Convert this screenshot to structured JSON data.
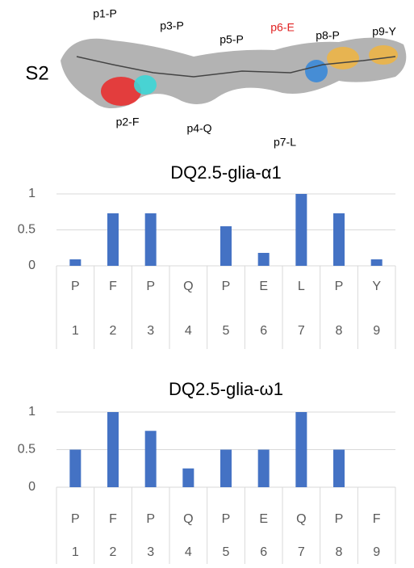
{
  "image": {
    "panel_label": "S2",
    "residue_labels": [
      "p1-P",
      "p2-F",
      "p3-P",
      "p4-Q",
      "p5-P",
      "p6-E",
      "p7-L",
      "p8-P",
      "p9-Y"
    ]
  },
  "chart_data": [
    {
      "type": "bar",
      "title": "DQ2.5-glia-α1",
      "categories": [
        "P",
        "F",
        "P",
        "Q",
        "P",
        "E",
        "L",
        "P",
        "Y"
      ],
      "category_numbers": [
        1,
        2,
        3,
        4,
        5,
        6,
        7,
        8,
        9
      ],
      "values": [
        0.09,
        0.73,
        0.73,
        0,
        0.55,
        0.18,
        1,
        0.73,
        0.09
      ],
      "color": "#4472c4",
      "ylim": [
        0,
        1
      ],
      "yticks": [
        0,
        0.5,
        1
      ],
      "grid": true
    },
    {
      "type": "bar",
      "title": "DQ2.5-glia-ω1",
      "categories": [
        "P",
        "F",
        "P",
        "Q",
        "P",
        "E",
        "Q",
        "P",
        "F"
      ],
      "category_numbers": [
        1,
        2,
        3,
        4,
        5,
        6,
        7,
        8,
        9
      ],
      "values": [
        0.5,
        1,
        0.75,
        0.25,
        0.5,
        0.5,
        1,
        0.5,
        0
      ],
      "color": "#4472c4",
      "ylim": [
        0,
        1
      ],
      "yticks": [
        0,
        0.5,
        1
      ],
      "grid": true
    }
  ]
}
